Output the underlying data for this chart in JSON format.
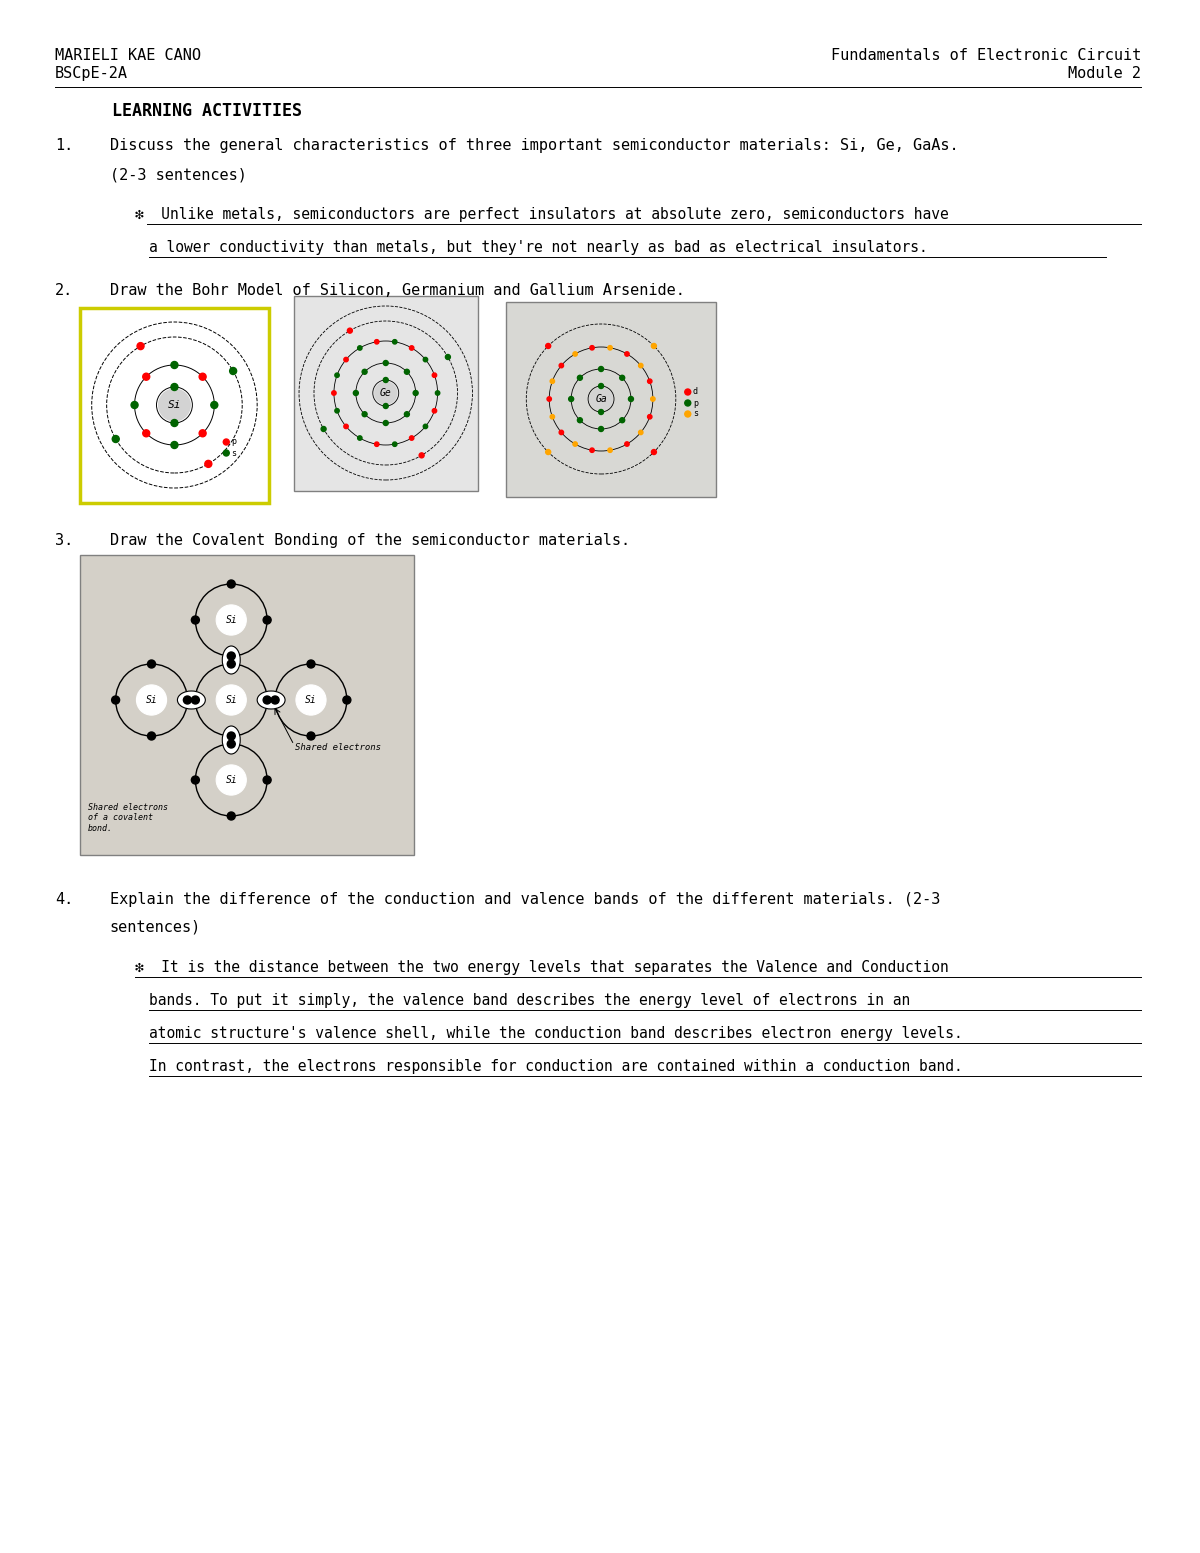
{
  "bg_color": "#ffffff",
  "header_left_line1": "MARIELI KAE CANO",
  "header_left_line2": "BSCpE-2A",
  "header_right_line1": "Fundamentals of Electronic Circuit",
  "header_right_line2": "Module 2",
  "section_title": "    LEARNING ACTIVITIES",
  "q1_number": "1.",
  "q1_text": "Discuss the general characteristics of three important semiconductor materials: Si, Ge, GaAs.",
  "q1_sub": "(2-3 sentences)",
  "q1_bullet_line1": "❇  Unlike metals, semiconductors are perfect insulators at absolute zero, semiconductors have",
  "q1_bullet_line2": "a lower conductivity than metals, but they're not nearly as bad as electrical insulators.",
  "q2_number": "2.",
  "q2_text": "Draw the Bohr Model of Silicon, Germanium and Gallium Arsenide.",
  "q3_number": "3.",
  "q3_text": "Draw the Covalent Bonding of the semiconductor materials.",
  "q4_number": "4.",
  "q4_text": "Explain the difference of the conduction and valence bands of the different materials. (2-3",
  "q4_text2": "sentences)",
  "q4_bullet_line1": "❇  It is the distance between the two energy levels that separates the Valence and Conduction",
  "q4_bullet_line2": "bands. To put it simply, the valence band describes the energy level of electrons in an",
  "q4_bullet_line3": "atomic structure's valence shell, while the conduction band describes electron energy levels.",
  "q4_bullet_line4": "In contrast, the electrons responsible for conduction are contained within a conduction band.",
  "font_size_header": 11,
  "font_size_section": 12,
  "font_size_body": 11,
  "font_size_bullet": 10.5
}
